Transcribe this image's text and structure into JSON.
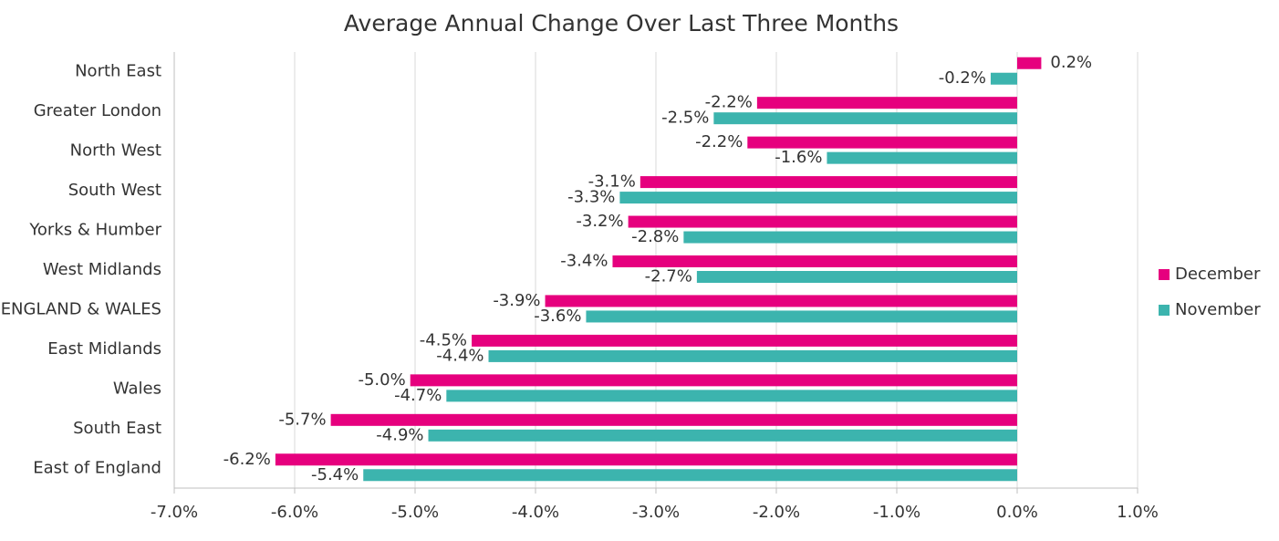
{
  "chart_data": {
    "type": "hbar",
    "title": "Average Annual Change Over Last Three Months",
    "categories": [
      "North East",
      "Greater London",
      "North West",
      "South West",
      "Yorks & Humber",
      "West Midlands",
      "ENGLAND & WALES",
      "East Midlands",
      "Wales",
      "South East",
      "East of England"
    ],
    "series": [
      {
        "name": "December",
        "color": "#e6007e",
        "values": [
          0.2,
          -2.16,
          -2.24,
          -3.13,
          -3.23,
          -3.36,
          -3.92,
          -4.53,
          -5.04,
          -5.7,
          -6.16
        ],
        "value_labels": [
          "0.2%",
          "-2.2%",
          "-2.2%",
          "-3.1%",
          "-3.2%",
          "-3.4%",
          "-3.9%",
          "-4.5%",
          "-5.0%",
          "-5.7%",
          "-6.2%"
        ]
      },
      {
        "name": "November",
        "color": "#3cb4ae",
        "values": [
          -0.22,
          -2.52,
          -1.58,
          -3.3,
          -2.77,
          -2.66,
          -3.58,
          -4.39,
          -4.74,
          -4.89,
          -5.43
        ],
        "value_labels": [
          "-0.2%",
          "-2.5%",
          "-1.6%",
          "-3.3%",
          "-2.8%",
          "-2.7%",
          "-3.6%",
          "-4.4%",
          "-4.7%",
          "-4.9%",
          "-5.4%"
        ]
      }
    ],
    "xlim": [
      -7,
      1
    ],
    "xticks": [
      {
        "value": -7,
        "label": "-7.0%"
      },
      {
        "value": -6,
        "label": "-6.0%"
      },
      {
        "value": -5,
        "label": "-5.0%"
      },
      {
        "value": -4,
        "label": "-4.0%"
      },
      {
        "value": -3,
        "label": "-3.0%"
      },
      {
        "value": -2,
        "label": "-2.0%"
      },
      {
        "value": -1,
        "label": "-1.0%"
      },
      {
        "value": 0,
        "label": "0.0%"
      },
      {
        "value": 1,
        "label": "1.0%"
      }
    ],
    "grid": true,
    "legend": "right"
  }
}
